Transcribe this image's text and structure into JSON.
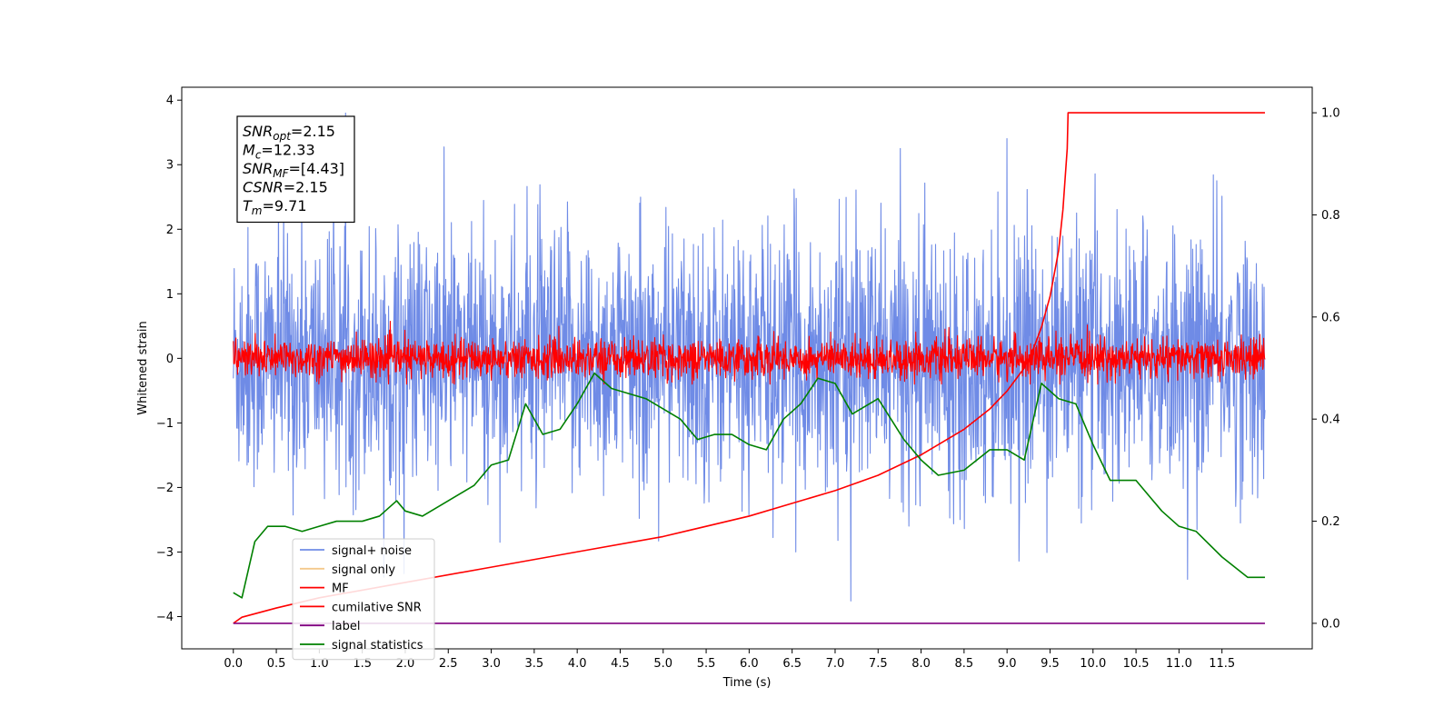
{
  "chart_data": {
    "type": "line",
    "xlabel": "Time (s)",
    "ylabel": "Whitened strain",
    "xlim": [
      -0.6,
      12.55
    ],
    "ylim_left": [
      -4.5,
      4.2
    ],
    "ylim_right": [
      -0.05,
      1.05
    ],
    "x_ticks": [
      "0.0",
      "0.5",
      "1.0",
      "1.5",
      "2.0",
      "2.5",
      "3.0",
      "3.5",
      "4.0",
      "4.5",
      "5.0",
      "5.5",
      "6.0",
      "6.5",
      "7.0",
      "7.5",
      "8.0",
      "8.5",
      "9.0",
      "9.5",
      "10.0",
      "10.5",
      "11.0",
      "11.5"
    ],
    "y_ticks_left": [
      "4",
      "3",
      "2",
      "1",
      "0",
      "−1",
      "−2",
      "−3",
      "−4"
    ],
    "y_ticks_right": [
      "1.0",
      "0.8",
      "0.6",
      "0.4",
      "0.2",
      "0.0"
    ],
    "grid": false,
    "legend_position": "lower-left",
    "annotation": {
      "lines": [
        {
          "main": "SNR",
          "sub": "opt",
          "rest": "=2.15"
        },
        {
          "main": "M",
          "sub": "c",
          "rest": "=12.33"
        },
        {
          "main": "SNR",
          "sub": "MF",
          "rest": "=[4.43]"
        },
        {
          "main": "CSNR",
          "sub": "",
          "rest": "=2.15"
        },
        {
          "main": "T",
          "sub": "m",
          "rest": "=9.71"
        }
      ]
    },
    "series": [
      {
        "name": "signal+ noise",
        "color": "#6f8be6",
        "axis": "left",
        "style": "noise",
        "x_range": [
          0,
          12
        ],
        "mean": 0,
        "std": 1.0,
        "range": [
          -4.15,
          3.8
        ]
      },
      {
        "name": "signal only",
        "color": "#f4c98c",
        "axis": "left",
        "style": "flat",
        "values": []
      },
      {
        "name": "MF",
        "color": "#ff0000",
        "axis": "left",
        "style": "noise",
        "x_range": [
          0,
          12
        ],
        "mean": 0,
        "std": 0.15,
        "range": [
          -0.4,
          1.0
        ]
      },
      {
        "name": "cumilative SNR",
        "color": "#ff0000",
        "axis": "right",
        "x": [
          0.0,
          0.1,
          0.5,
          1.0,
          2.0,
          3.0,
          4.0,
          5.0,
          6.0,
          6.5,
          7.0,
          7.5,
          8.0,
          8.5,
          8.8,
          9.0,
          9.2,
          9.3,
          9.4,
          9.5,
          9.6,
          9.65,
          9.7,
          9.71,
          12.0
        ],
        "values": [
          0.0,
          0.012,
          0.03,
          0.05,
          0.08,
          0.11,
          0.14,
          0.17,
          0.21,
          0.235,
          0.26,
          0.29,
          0.33,
          0.38,
          0.42,
          0.455,
          0.5,
          0.535,
          0.58,
          0.64,
          0.73,
          0.81,
          0.93,
          1.0,
          1.0
        ]
      },
      {
        "name": "label",
        "color": "#800080",
        "axis": "right",
        "x": [
          0,
          12
        ],
        "values": [
          0.0,
          0.0
        ]
      },
      {
        "name": "signal statistics",
        "color": "#008000",
        "axis": "right",
        "x": [
          0.0,
          0.1,
          0.25,
          0.4,
          0.6,
          0.8,
          1.0,
          1.2,
          1.5,
          1.7,
          1.9,
          2.0,
          2.2,
          2.5,
          2.8,
          3.0,
          3.2,
          3.4,
          3.6,
          3.8,
          4.0,
          4.2,
          4.4,
          4.6,
          4.8,
          5.0,
          5.2,
          5.4,
          5.6,
          5.8,
          6.0,
          6.2,
          6.4,
          6.6,
          6.8,
          7.0,
          7.2,
          7.5,
          7.8,
          8.0,
          8.2,
          8.5,
          8.8,
          9.0,
          9.2,
          9.4,
          9.6,
          9.8,
          10.0,
          10.2,
          10.5,
          10.8,
          11.0,
          11.2,
          11.5,
          11.8,
          12.0
        ],
        "values": [
          0.06,
          0.05,
          0.16,
          0.19,
          0.19,
          0.18,
          0.19,
          0.2,
          0.2,
          0.21,
          0.24,
          0.22,
          0.21,
          0.24,
          0.27,
          0.31,
          0.32,
          0.43,
          0.37,
          0.38,
          0.43,
          0.49,
          0.46,
          0.45,
          0.44,
          0.42,
          0.4,
          0.36,
          0.37,
          0.37,
          0.35,
          0.34,
          0.4,
          0.43,
          0.48,
          0.47,
          0.41,
          0.44,
          0.36,
          0.32,
          0.29,
          0.3,
          0.34,
          0.34,
          0.32,
          0.47,
          0.44,
          0.43,
          0.35,
          0.28,
          0.28,
          0.22,
          0.19,
          0.18,
          0.13,
          0.09,
          0.09
        ]
      }
    ]
  }
}
